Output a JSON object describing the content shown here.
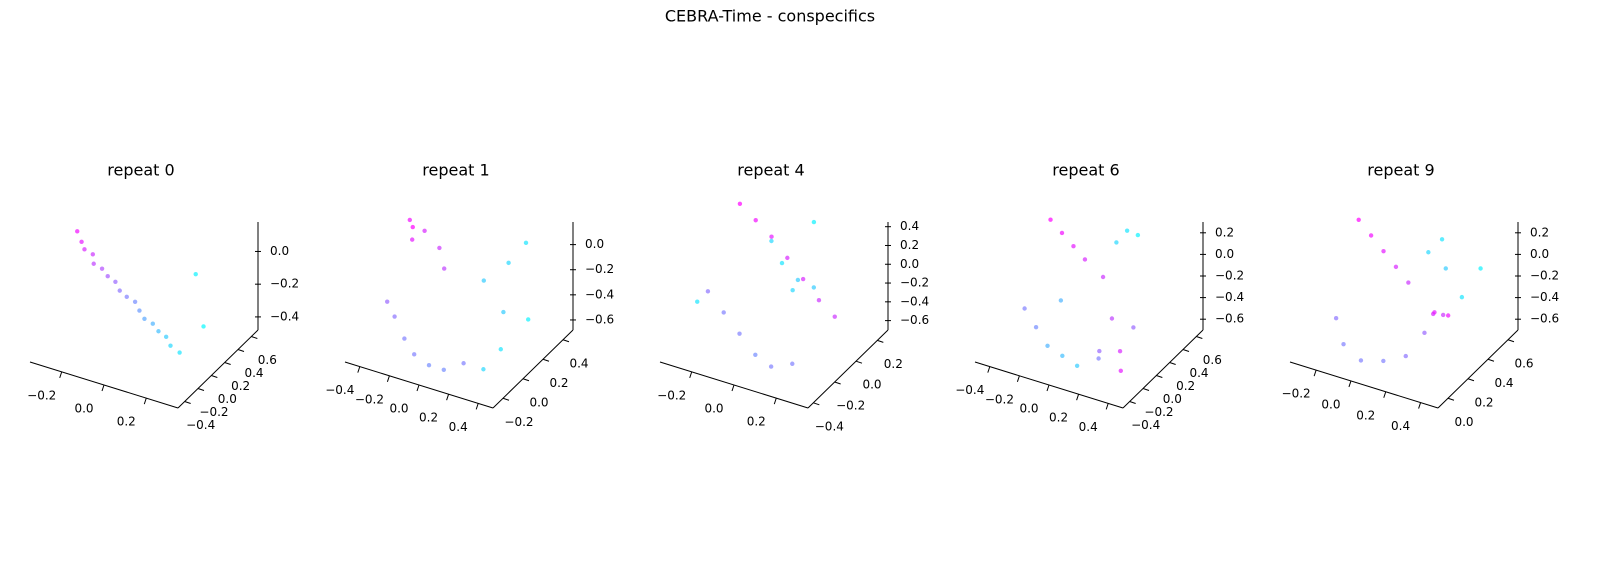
{
  "title": "CEBRA-Time - conspecifics",
  "chart_data": [
    {
      "type": "scatter3d",
      "title": "repeat 0",
      "cmap": "cool",
      "x": [
        -0.3,
        -0.27,
        -0.25,
        -0.22,
        -0.2,
        -0.17,
        -0.14,
        -0.11,
        -0.08,
        -0.05,
        -0.02,
        0.01,
        0.04,
        0.07,
        0.1,
        0.13,
        0.16,
        0.2,
        0.15,
        0.25
      ],
      "y": [
        0.05,
        0.02,
        0,
        0.03,
        -0.02,
        0.01,
        0,
        0.02,
        -0.01,
        0,
        0.03,
        0,
        -0.02,
        0.01,
        0,
        0.02,
        -0.01,
        0,
        0.4,
        0.2
      ],
      "z": [
        0.12,
        0.08,
        0.05,
        0.02,
        -0.01,
        -0.04,
        -0.07,
        -0.1,
        -0.13,
        -0.16,
        -0.19,
        -0.22,
        -0.25,
        -0.28,
        -0.31,
        -0.34,
        -0.37,
        -0.4,
        -0.1,
        -0.3
      ],
      "c": [
        0.95,
        0.9,
        0.85,
        0.8,
        0.75,
        0.7,
        0.65,
        0.6,
        0.55,
        0.5,
        0.45,
        0.4,
        0.35,
        0.3,
        0.25,
        0.2,
        0.15,
        0.1,
        0.05,
        0.02
      ],
      "xlim": [
        -0.35,
        0.35
      ],
      "ylim": [
        -0.5,
        0.7
      ],
      "zlim": [
        -0.48,
        0.18
      ],
      "xticks": [
        {
          "value": -0.2,
          "label": "−0.2"
        },
        {
          "value": 0,
          "label": "0.0"
        },
        {
          "value": 0.2,
          "label": "0.2"
        }
      ],
      "yticks": [
        {
          "value": -0.4,
          "label": "−0.4"
        },
        {
          "value": -0.2,
          "label": "−0.2"
        },
        {
          "value": 0,
          "label": "0.0"
        },
        {
          "value": 0.2,
          "label": "0.2"
        },
        {
          "value": 0.4,
          "label": "0.4"
        },
        {
          "value": 0.6,
          "label": "0.6"
        }
      ],
      "zticks": [
        {
          "value": -0.4,
          "label": "−0.4"
        },
        {
          "value": -0.2,
          "label": "−0.2"
        },
        {
          "value": 0,
          "label": "0.0"
        }
      ]
    },
    {
      "type": "scatter3d",
      "title": "repeat 1",
      "cmap": "cool",
      "x": [
        -0.4,
        -0.38,
        -0.35,
        -0.3,
        -0.2,
        -0.1,
        -0.35,
        -0.3,
        -0.2,
        -0.1,
        0,
        0.1,
        0.2,
        0.1,
        0.2,
        0.3,
        0.35,
        0.25,
        0.4,
        0.3
      ],
      "y": [
        0.2,
        0.2,
        0.15,
        0.2,
        0.2,
        0.1,
        -0.1,
        -0.1,
        -0.15,
        -0.2,
        -0.2,
        -0.2,
        -0.15,
        0.2,
        0.3,
        0.1,
        0,
        0.4,
        0.2,
        -0.1
      ],
      "z": [
        0.1,
        0.05,
        0,
        0.05,
        -0.05,
        -0.1,
        -0.3,
        -0.4,
        -0.5,
        -0.55,
        -0.6,
        -0.6,
        -0.55,
        -0.2,
        -0.1,
        -0.3,
        -0.5,
        0,
        -0.4,
        -0.6
      ],
      "c": [
        0.95,
        1,
        0.9,
        0.85,
        0.8,
        0.75,
        0.6,
        0.55,
        0.5,
        0.5,
        0.45,
        0.45,
        0.5,
        0.2,
        0.15,
        0.2,
        0.1,
        0.1,
        0.05,
        0.15
      ],
      "xlim": [
        -0.5,
        0.5
      ],
      "ylim": [
        -0.3,
        0.5
      ],
      "zlim": [
        -0.68,
        0.18
      ],
      "xticks": [
        {
          "value": -0.4,
          "label": "−0.4"
        },
        {
          "value": -0.2,
          "label": "−0.2"
        },
        {
          "value": 0,
          "label": "0.0"
        },
        {
          "value": 0.2,
          "label": "0.2"
        },
        {
          "value": 0.4,
          "label": "0.4"
        }
      ],
      "yticks": [
        {
          "value": -0.2,
          "label": "−0.2"
        },
        {
          "value": 0,
          "label": "0.0"
        },
        {
          "value": 0.2,
          "label": "0.2"
        },
        {
          "value": 0.4,
          "label": "0.4"
        }
      ],
      "zticks": [
        {
          "value": -0.6,
          "label": "−0.6"
        },
        {
          "value": -0.4,
          "label": "−0.4"
        },
        {
          "value": -0.2,
          "label": "−0.2"
        },
        {
          "value": 0,
          "label": "0.0"
        }
      ]
    },
    {
      "type": "scatter3d",
      "title": "repeat 4",
      "cmap": "cool",
      "x": [
        -0.3,
        -0.2,
        -0.1,
        0,
        0.1,
        0.2,
        0.3,
        -0.3,
        -0.2,
        -0.1,
        0,
        0.1,
        0.2,
        -0.05,
        0,
        0.05,
        0,
        0.05,
        -0.3,
        0.1
      ],
      "y": [
        0.2,
        0.15,
        0.1,
        0.05,
        0,
        -0.05,
        -0.1,
        -0.1,
        -0.15,
        -0.2,
        -0.25,
        -0.3,
        -0.3,
        0,
        0,
        0.05,
        0.1,
        0.2,
        -0.2,
        0.1
      ],
      "z": [
        0.3,
        0.25,
        0.2,
        0.1,
        0,
        -0.1,
        -0.15,
        -0.3,
        -0.4,
        -0.5,
        -0.6,
        -0.6,
        -0.5,
        0.3,
        0.1,
        -0.1,
        -0.3,
        0.35,
        -0.3,
        -0.2
      ],
      "c": [
        1,
        0.95,
        0.9,
        0.85,
        0.85,
        0.8,
        0.8,
        0.55,
        0.5,
        0.5,
        0.45,
        0.5,
        0.5,
        0.15,
        0.1,
        0.2,
        0.15,
        0.05,
        0.1,
        0.2
      ],
      "xlim": [
        -0.35,
        0.35
      ],
      "ylim": [
        -0.45,
        0.3
      ],
      "zlim": [
        -0.7,
        0.45
      ],
      "xticks": [
        {
          "value": -0.2,
          "label": "−0.2"
        },
        {
          "value": 0,
          "label": "0.0"
        },
        {
          "value": 0.2,
          "label": "0.2"
        }
      ],
      "yticks": [
        {
          "value": -0.4,
          "label": "−0.4"
        },
        {
          "value": -0.2,
          "label": "−0.2"
        },
        {
          "value": 0,
          "label": "0.0"
        },
        {
          "value": 0.2,
          "label": "0.2"
        }
      ],
      "zticks": [
        {
          "value": -0.6,
          "label": "−0.6"
        },
        {
          "value": -0.4,
          "label": "−0.4"
        },
        {
          "value": -0.2,
          "label": "−0.2"
        },
        {
          "value": 0,
          "label": "0.0"
        },
        {
          "value": 0.2,
          "label": "0.2"
        },
        {
          "value": 0.4,
          "label": "0.4"
        }
      ]
    },
    {
      "type": "scatter3d",
      "title": "repeat 6",
      "cmap": "cool",
      "x": [
        -0.35,
        -0.25,
        -0.15,
        -0.05,
        0.05,
        0.2,
        0.3,
        0.35,
        0.3,
        -0.3,
        -0.2,
        -0.1,
        0,
        0.1,
        0.2,
        0.05,
        0.1,
        0.15,
        -0.1,
        0.25
      ],
      "y": [
        0.3,
        0.25,
        0.2,
        0.15,
        0.2,
        0,
        -0.1,
        -0.2,
        0.1,
        -0.2,
        -0.25,
        -0.3,
        -0.3,
        -0.3,
        -0.2,
        0.4,
        0.45,
        0.5,
        -0.1,
        -0.3
      ],
      "z": [
        0.2,
        0.15,
        0.1,
        0.05,
        -0.1,
        -0.3,
        -0.5,
        -0.6,
        -0.4,
        -0.3,
        -0.4,
        -0.5,
        -0.55,
        -0.6,
        -0.55,
        0.1,
        0.2,
        0.15,
        -0.2,
        -0.4
      ],
      "c": [
        1,
        0.95,
        0.9,
        0.85,
        0.8,
        0.75,
        0.85,
        0.9,
        0.6,
        0.5,
        0.45,
        0.3,
        0.25,
        0.2,
        0.5,
        0.15,
        0.1,
        0.05,
        0.3,
        0.6
      ],
      "xlim": [
        -0.5,
        0.5
      ],
      "ylim": [
        -0.5,
        0.7
      ],
      "zlim": [
        -0.7,
        0.3
      ],
      "xticks": [
        {
          "value": -0.4,
          "label": "−0.4"
        },
        {
          "value": -0.2,
          "label": "−0.2"
        },
        {
          "value": 0,
          "label": "0.0"
        },
        {
          "value": 0.2,
          "label": "0.2"
        },
        {
          "value": 0.4,
          "label": "0.4"
        }
      ],
      "yticks": [
        {
          "value": -0.4,
          "label": "−0.4"
        },
        {
          "value": -0.2,
          "label": "−0.2"
        },
        {
          "value": 0,
          "label": "0.0"
        },
        {
          "value": 0.2,
          "label": "0.2"
        },
        {
          "value": 0.4,
          "label": "0.4"
        },
        {
          "value": 0.6,
          "label": "0.6"
        }
      ],
      "zticks": [
        {
          "value": -0.6,
          "label": "−0.6"
        },
        {
          "value": -0.4,
          "label": "−0.4"
        },
        {
          "value": -0.2,
          "label": "−0.2"
        },
        {
          "value": 0,
          "label": "0.0"
        },
        {
          "value": 0.2,
          "label": "0.2"
        }
      ]
    },
    {
      "type": "scatter3d",
      "title": "repeat 9",
      "cmap": "cool",
      "x": [
        -0.3,
        -0.2,
        -0.1,
        0,
        0.1,
        -0.2,
        -0.1,
        0,
        0.1,
        0.2,
        0.25,
        0.3,
        0.3,
        0.1,
        0.15,
        0.2,
        0.4,
        0.35,
        0.25,
        0.3
      ],
      "y": [
        0.5,
        0.45,
        0.4,
        0.35,
        0.3,
        0.1,
        0,
        0,
        0.05,
        0.1,
        0.2,
        0.3,
        0.2,
        0.5,
        0.55,
        0.5,
        0.5,
        0.4,
        0.3,
        0.35
      ],
      "z": [
        0.1,
        0.05,
        0,
        -0.05,
        -0.1,
        -0.4,
        -0.5,
        -0.6,
        -0.6,
        -0.55,
        -0.4,
        -0.3,
        -0.2,
        0,
        0.1,
        -0.1,
        0,
        -0.2,
        -0.3,
        -0.35
      ],
      "c": [
        1,
        0.95,
        0.9,
        0.85,
        0.8,
        0.55,
        0.5,
        0.5,
        0.5,
        0.55,
        0.6,
        0.8,
        0.85,
        0.15,
        0.1,
        0.2,
        0.05,
        0.1,
        0.9,
        0.95
      ],
      "xlim": [
        -0.35,
        0.5
      ],
      "ylim": [
        -0.1,
        0.7
      ],
      "zlim": [
        -0.7,
        0.3
      ],
      "xticks": [
        {
          "value": -0.2,
          "label": "−0.2"
        },
        {
          "value": 0,
          "label": "0.0"
        },
        {
          "value": 0.2,
          "label": "0.2"
        },
        {
          "value": 0.4,
          "label": "0.4"
        }
      ],
      "yticks": [
        {
          "value": 0,
          "label": "0.0"
        },
        {
          "value": 0.2,
          "label": "0.2"
        },
        {
          "value": 0.4,
          "label": "0.4"
        },
        {
          "value": 0.6,
          "label": "0.6"
        }
      ],
      "zticks": [
        {
          "value": -0.6,
          "label": "−0.6"
        },
        {
          "value": -0.4,
          "label": "−0.4"
        },
        {
          "value": -0.2,
          "label": "−0.2"
        },
        {
          "value": 0,
          "label": "0.0"
        },
        {
          "value": 0.2,
          "label": "0.2"
        }
      ]
    }
  ]
}
